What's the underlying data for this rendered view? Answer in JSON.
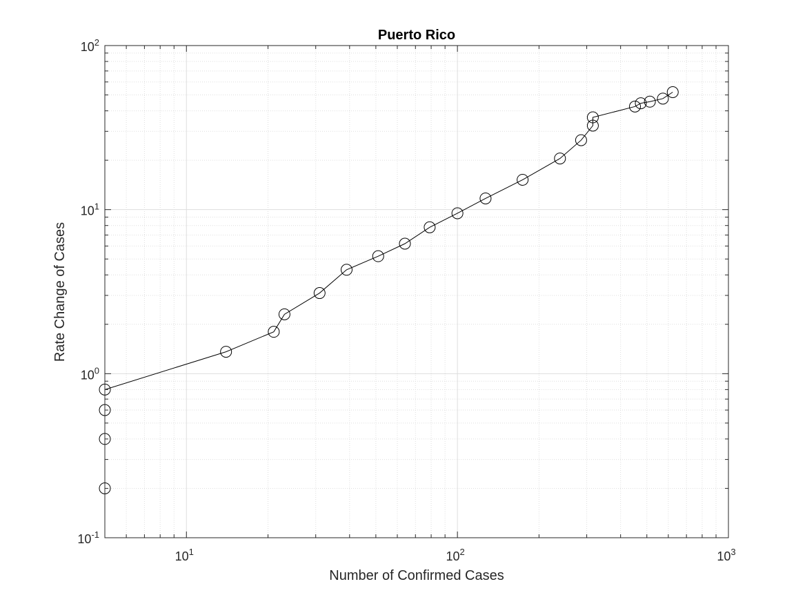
{
  "chart_data": {
    "type": "scatter",
    "title": "Puerto Rico",
    "xlabel": "Number of Confirmed Cases",
    "ylabel": "Rate Change of Cases",
    "xscale": "log",
    "yscale": "log",
    "xlim": [
      5,
      1000
    ],
    "ylim": [
      0.1,
      100
    ],
    "grid": true,
    "minor_grid": true,
    "marker": "open-circle",
    "line_color": "#000000",
    "x_ticks": [
      {
        "value": 10,
        "base": "10",
        "exp": "1"
      },
      {
        "value": 100,
        "base": "10",
        "exp": "2"
      },
      {
        "value": 1000,
        "base": "10",
        "exp": "3"
      }
    ],
    "y_ticks": [
      {
        "value": 0.1,
        "base": "10",
        "exp": "-1"
      },
      {
        "value": 1,
        "base": "10",
        "exp": "0"
      },
      {
        "value": 10,
        "base": "10",
        "exp": "1"
      },
      {
        "value": 100,
        "base": "10",
        "exp": "2"
      }
    ],
    "series": [
      {
        "x": [
          5,
          5,
          5,
          5,
          14,
          21,
          23,
          31,
          39,
          51,
          64,
          79,
          100,
          127,
          174,
          239,
          286,
          316,
          316,
          452,
          475,
          513,
          573,
          623
        ],
        "y": [
          0.2,
          0.4,
          0.6,
          0.8,
          1.36,
          1.8,
          2.3,
          3.1,
          4.3,
          5.2,
          6.2,
          7.8,
          9.5,
          11.7,
          15.2,
          20.5,
          26.5,
          32.5,
          36.5,
          42.5,
          44.5,
          45.5,
          47.5,
          52
        ]
      }
    ]
  }
}
